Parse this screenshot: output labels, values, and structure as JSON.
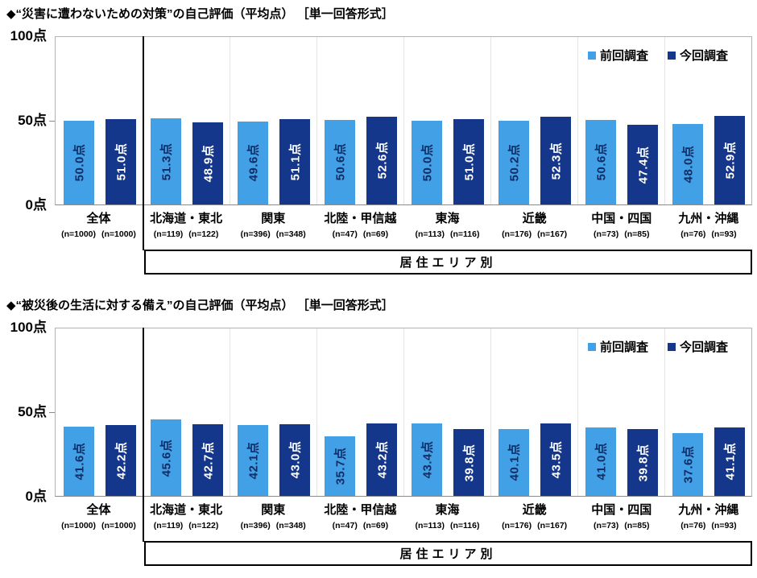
{
  "colors": {
    "previous_series": "#42A0E6",
    "current_series": "#14378C",
    "label_on_previous": "#0F2D66",
    "label_on_current": "#FFFFFF"
  },
  "legend": {
    "previous": "前回調査",
    "current": "今回調査"
  },
  "axis": {
    "top": "100点",
    "mid": "50点",
    "bottom": "0点"
  },
  "area_box_label": "居住エリア別",
  "chart_data": [
    {
      "type": "bar",
      "title": "◆“災害に遭わないための対策”の自己評価（平均点） ［単一回答形式］",
      "categories": [
        "全体",
        "北海道・東北",
        "関東",
        "北陸・甲信越",
        "東海",
        "近畿",
        "中国・四国",
        "九州・沖縄"
      ],
      "sample_sizes": [
        [
          "(n=1000)",
          "(n=1000)"
        ],
        [
          "(n=119)",
          "(n=122)"
        ],
        [
          "(n=396)",
          "(n=348)"
        ],
        [
          "(n=47)",
          "(n=69)"
        ],
        [
          "(n=113)",
          "(n=116)"
        ],
        [
          "(n=176)",
          "(n=167)"
        ],
        [
          "(n=73)",
          "(n=85)"
        ],
        [
          "(n=76)",
          "(n=93)"
        ]
      ],
      "series": [
        {
          "name": "前回調査",
          "values": [
            50.0,
            51.3,
            49.6,
            50.6,
            50.0,
            50.2,
            50.6,
            48.0
          ]
        },
        {
          "name": "今回調査",
          "values": [
            51.0,
            48.9,
            51.1,
            52.6,
            51.0,
            52.3,
            47.4,
            52.9
          ]
        }
      ],
      "value_suffix": "点",
      "ylim": [
        0,
        100
      ],
      "yticks": [
        "0点",
        "50点",
        "100点"
      ],
      "legend_position": "top-right",
      "grid": false,
      "group_box_label": "居住エリア別"
    },
    {
      "type": "bar",
      "title": "◆“被災後の生活に対する備え”の自己評価（平均点） ［単一回答形式］",
      "categories": [
        "全体",
        "北海道・東北",
        "関東",
        "北陸・甲信越",
        "東海",
        "近畿",
        "中国・四国",
        "九州・沖縄"
      ],
      "sample_sizes": [
        [
          "(n=1000)",
          "(n=1000)"
        ],
        [
          "(n=119)",
          "(n=122)"
        ],
        [
          "(n=396)",
          "(n=348)"
        ],
        [
          "(n=47)",
          "(n=69)"
        ],
        [
          "(n=113)",
          "(n=116)"
        ],
        [
          "(n=176)",
          "(n=167)"
        ],
        [
          "(n=73)",
          "(n=85)"
        ],
        [
          "(n=76)",
          "(n=93)"
        ]
      ],
      "series": [
        {
          "name": "前回調査",
          "values": [
            41.6,
            45.6,
            42.1,
            35.7,
            43.4,
            40.1,
            41.0,
            37.6
          ]
        },
        {
          "name": "今回調査",
          "values": [
            42.2,
            42.7,
            43.0,
            43.2,
            39.8,
            43.5,
            39.8,
            41.1
          ]
        }
      ],
      "value_suffix": "点",
      "ylim": [
        0,
        100
      ],
      "yticks": [
        "0点",
        "50点",
        "100点"
      ],
      "legend_position": "top-right",
      "grid": false,
      "group_box_label": "居住エリア別"
    }
  ]
}
